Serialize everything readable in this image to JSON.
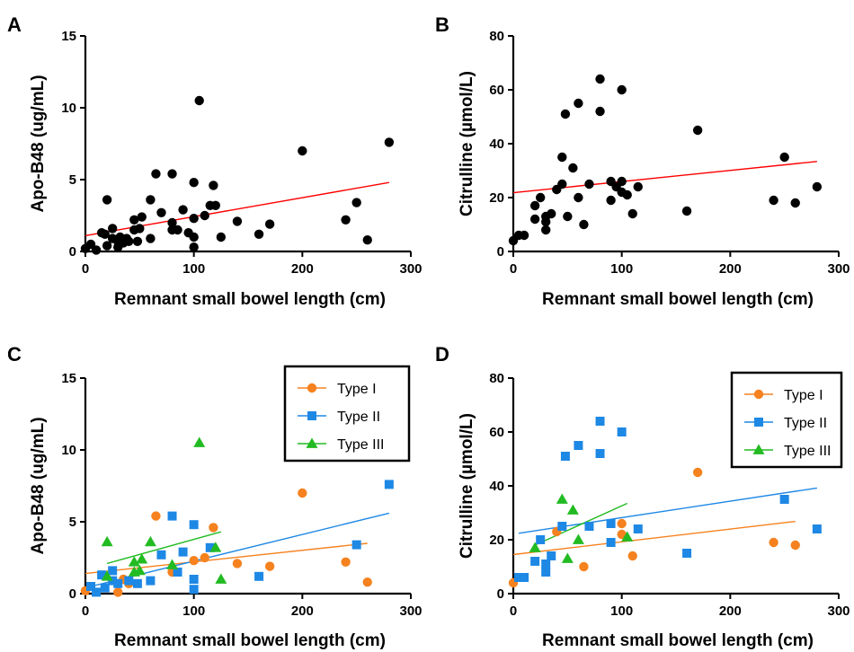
{
  "chart_data": [
    {
      "panel": "A",
      "type": "scatter",
      "xlabel": "Remnant small bowel length (cm)",
      "ylabel": "Apo-B48 (ug/mL)",
      "xlim": [
        0,
        300
      ],
      "ylim": [
        0,
        15
      ],
      "xticks": [
        0,
        100,
        200,
        300
      ],
      "yticks": [
        0,
        5,
        10,
        15
      ],
      "series": [
        {
          "color": "#000000",
          "marker": "circle",
          "points": [
            [
              0,
              0.2
            ],
            [
              5,
              0.5
            ],
            [
              10,
              0.1
            ],
            [
              15,
              1.3
            ],
            [
              18,
              1.2
            ],
            [
              20,
              0.4
            ],
            [
              20,
              3.6
            ],
            [
              25,
              0.9
            ],
            [
              25,
              1.6
            ],
            [
              30,
              0.3
            ],
            [
              30,
              0.7
            ],
            [
              32,
              1.0
            ],
            [
              35,
              0.6
            ],
            [
              38,
              0.9
            ],
            [
              40,
              0.7
            ],
            [
              45,
              1.5
            ],
            [
              45,
              2.2
            ],
            [
              48,
              0.7
            ],
            [
              50,
              1.6
            ],
            [
              52,
              2.4
            ],
            [
              60,
              0.9
            ],
            [
              60,
              3.6
            ],
            [
              65,
              5.4
            ],
            [
              70,
              2.7
            ],
            [
              80,
              1.5
            ],
            [
              80,
              5.4
            ],
            [
              80,
              2.0
            ],
            [
              85,
              1.5
            ],
            [
              90,
              2.9
            ],
            [
              95,
              1.3
            ],
            [
              100,
              2.3
            ],
            [
              100,
              0.3
            ],
            [
              100,
              1.0
            ],
            [
              100,
              4.8
            ],
            [
              105,
              10.5
            ],
            [
              110,
              2.5
            ],
            [
              115,
              3.2
            ],
            [
              118,
              4.6
            ],
            [
              120,
              3.2
            ],
            [
              125,
              1.0
            ],
            [
              140,
              2.1
            ],
            [
              160,
              1.2
            ],
            [
              170,
              1.9
            ],
            [
              200,
              7.0
            ],
            [
              240,
              2.2
            ],
            [
              250,
              3.4
            ],
            [
              260,
              0.8
            ],
            [
              280,
              7.6
            ]
          ]
        }
      ],
      "fits": [
        {
          "color": "#ff0000",
          "x": [
            0,
            280
          ],
          "y": [
            1.1,
            4.8
          ]
        }
      ]
    },
    {
      "panel": "B",
      "type": "scatter",
      "xlabel": "Remnant small bowel length (cm)",
      "ylabel": "Citrulline (µmol/L)",
      "xlim": [
        0,
        300
      ],
      "ylim": [
        0,
        80
      ],
      "xticks": [
        0,
        100,
        200,
        300
      ],
      "yticks": [
        0,
        20,
        40,
        60,
        80
      ],
      "series": [
        {
          "color": "#000000",
          "marker": "circle",
          "points": [
            [
              0,
              4
            ],
            [
              5,
              6
            ],
            [
              10,
              6
            ],
            [
              20,
              12
            ],
            [
              20,
              17
            ],
            [
              25,
              20
            ],
            [
              30,
              8
            ],
            [
              30,
              11
            ],
            [
              30,
              13
            ],
            [
              35,
              14
            ],
            [
              40,
              23
            ],
            [
              45,
              25
            ],
            [
              45,
              35
            ],
            [
              48,
              51
            ],
            [
              50,
              13
            ],
            [
              55,
              31
            ],
            [
              60,
              20
            ],
            [
              60,
              55
            ],
            [
              65,
              10
            ],
            [
              70,
              25
            ],
            [
              80,
              64
            ],
            [
              80,
              52
            ],
            [
              90,
              26
            ],
            [
              90,
              19
            ],
            [
              95,
              24
            ],
            [
              100,
              26
            ],
            [
              100,
              22
            ],
            [
              100,
              60
            ],
            [
              105,
              21
            ],
            [
              110,
              14
            ],
            [
              115,
              24
            ],
            [
              160,
              15
            ],
            [
              170,
              45
            ],
            [
              240,
              19
            ],
            [
              250,
              35
            ],
            [
              260,
              18
            ],
            [
              280,
              24
            ]
          ]
        }
      ],
      "fits": [
        {
          "color": "#ff0000",
          "x": [
            0,
            280
          ],
          "y": [
            21.8,
            33.4
          ]
        }
      ]
    },
    {
      "panel": "C",
      "type": "scatter",
      "xlabel": "Remnant small bowel length (cm)",
      "ylabel": "Apo-B48 (ug/mL)",
      "xlim": [
        0,
        300
      ],
      "ylim": [
        0,
        15
      ],
      "xticks": [
        0,
        100,
        200,
        300
      ],
      "yticks": [
        0,
        5,
        10,
        15
      ],
      "legend": {
        "position": "top-right",
        "entries": [
          "Type I",
          "Type II",
          "Type III"
        ]
      },
      "series": [
        {
          "name": "Type I",
          "color": "#f5821f",
          "marker": "circle",
          "points": [
            [
              0,
              0.2
            ],
            [
              30,
              0.1
            ],
            [
              35,
              1.0
            ],
            [
              40,
              0.7
            ],
            [
              65,
              5.4
            ],
            [
              80,
              1.5
            ],
            [
              100,
              2.3
            ],
            [
              110,
              2.5
            ],
            [
              118,
              4.6
            ],
            [
              140,
              2.1
            ],
            [
              170,
              1.9
            ],
            [
              200,
              7.0
            ],
            [
              240,
              2.2
            ],
            [
              260,
              0.8
            ]
          ]
        },
        {
          "name": "Type II",
          "color": "#1e88e5",
          "marker": "square",
          "points": [
            [
              5,
              0.5
            ],
            [
              10,
              0.1
            ],
            [
              15,
              1.3
            ],
            [
              18,
              0.4
            ],
            [
              25,
              1.6
            ],
            [
              25,
              0.9
            ],
            [
              30,
              0.7
            ],
            [
              40,
              0.9
            ],
            [
              48,
              0.7
            ],
            [
              60,
              0.9
            ],
            [
              70,
              2.7
            ],
            [
              80,
              5.4
            ],
            [
              85,
              1.5
            ],
            [
              90,
              2.9
            ],
            [
              100,
              4.8
            ],
            [
              100,
              1.0
            ],
            [
              100,
              0.3
            ],
            [
              115,
              3.2
            ],
            [
              160,
              1.2
            ],
            [
              250,
              3.4
            ],
            [
              280,
              7.6
            ]
          ]
        },
        {
          "name": "Type III",
          "color": "#22bb22",
          "marker": "triangle",
          "points": [
            [
              20,
              3.6
            ],
            [
              20,
              1.2
            ],
            [
              45,
              2.2
            ],
            [
              45,
              1.5
            ],
            [
              50,
              1.6
            ],
            [
              52,
              2.4
            ],
            [
              60,
              3.6
            ],
            [
              80,
              2.0
            ],
            [
              105,
              10.5
            ],
            [
              120,
              3.2
            ],
            [
              125,
              1.0
            ]
          ]
        }
      ],
      "fits": [
        {
          "color": "#f5821f",
          "x": [
            0,
            260
          ],
          "y": [
            1.4,
            3.5
          ]
        },
        {
          "color": "#1e88e5",
          "x": [
            5,
            280
          ],
          "y": [
            0.5,
            5.6
          ]
        },
        {
          "color": "#22bb22",
          "x": [
            20,
            125
          ],
          "y": [
            2.1,
            4.3
          ]
        }
      ]
    },
    {
      "panel": "D",
      "type": "scatter",
      "xlabel": "Remnant small bowel length (cm)",
      "ylabel": "Citrulline (µmol/L)",
      "xlim": [
        0,
        300
      ],
      "ylim": [
        0,
        80
      ],
      "xticks": [
        0,
        100,
        200,
        300
      ],
      "yticks": [
        0,
        20,
        40,
        60,
        80
      ],
      "legend": {
        "position": "top-right",
        "entries": [
          "Type I",
          "Type II",
          "Type III"
        ]
      },
      "series": [
        {
          "name": "Type I",
          "color": "#f5821f",
          "marker": "circle",
          "points": [
            [
              0,
              4
            ],
            [
              40,
              23
            ],
            [
              65,
              10
            ],
            [
              100,
              26
            ],
            [
              100,
              22
            ],
            [
              110,
              14
            ],
            [
              170,
              45
            ],
            [
              240,
              19
            ],
            [
              260,
              18
            ]
          ]
        },
        {
          "name": "Type II",
          "color": "#1e88e5",
          "marker": "square",
          "points": [
            [
              5,
              6
            ],
            [
              10,
              6
            ],
            [
              20,
              12
            ],
            [
              25,
              20
            ],
            [
              30,
              11
            ],
            [
              30,
              8
            ],
            [
              35,
              14
            ],
            [
              45,
              25
            ],
            [
              48,
              51
            ],
            [
              60,
              55
            ],
            [
              70,
              25
            ],
            [
              80,
              64
            ],
            [
              80,
              52
            ],
            [
              90,
              26
            ],
            [
              90,
              19
            ],
            [
              100,
              60
            ],
            [
              115,
              24
            ],
            [
              160,
              15
            ],
            [
              250,
              35
            ],
            [
              280,
              24
            ]
          ]
        },
        {
          "name": "Type III",
          "color": "#22bb22",
          "marker": "triangle",
          "points": [
            [
              20,
              17
            ],
            [
              45,
              35
            ],
            [
              50,
              13
            ],
            [
              55,
              31
            ],
            [
              60,
              20
            ],
            [
              105,
              21
            ]
          ]
        }
      ],
      "fits": [
        {
          "color": "#f5821f",
          "x": [
            0,
            260
          ],
          "y": [
            14.5,
            26.8
          ]
        },
        {
          "color": "#1e88e5",
          "x": [
            5,
            280
          ],
          "y": [
            22.4,
            39.2
          ]
        },
        {
          "color": "#22bb22",
          "x": [
            20,
            105
          ],
          "y": [
            18.0,
            33.5
          ]
        }
      ]
    }
  ]
}
